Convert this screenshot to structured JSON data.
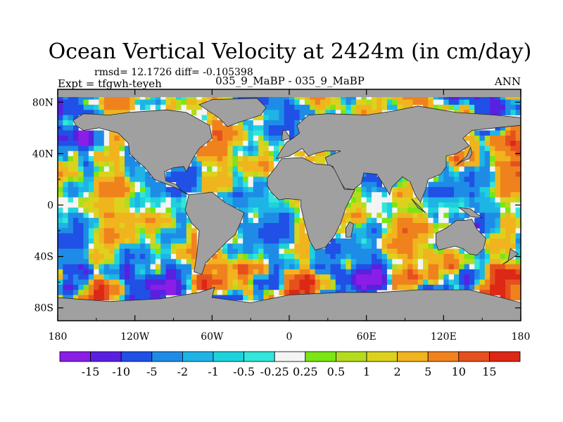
{
  "chart_data": {
    "type": "heatmap",
    "projection": "cylindrical-equidistant",
    "title": "Ocean Vertical Velocity at 2424m (in cm/day)",
    "stats_label": "rmsd= 12.1726  diff= -0.105398",
    "left_label": "Expt = tfgwh-teyeh",
    "center_label": "035_9_MaBP - 035_9_MaBP",
    "right_label": "ANN",
    "xlim": [
      -180,
      180
    ],
    "ylim": [
      -90,
      90
    ],
    "x_ticks": [
      -180,
      -120,
      -60,
      0,
      60,
      120,
      180
    ],
    "x_tick_labels": [
      "180",
      "120W",
      "60W",
      "0",
      "60E",
      "120E",
      "180"
    ],
    "y_ticks": [
      80,
      40,
      0,
      -40,
      -80
    ],
    "y_tick_labels": [
      "80N",
      "40N",
      "0",
      "40S",
      "80S"
    ],
    "land_color": "#a0a0a0",
    "colorbar": {
      "orientation": "horizontal",
      "levels": [
        "-15",
        "-10",
        "-5",
        "-2",
        "-1",
        "-0.5",
        "-0.25",
        "0.25",
        "0.5",
        "1",
        "2",
        "5",
        "10",
        "15"
      ],
      "colors": [
        "#8a1ee6",
        "#5a20e0",
        "#2050e6",
        "#1e8ce6",
        "#1eb4e6",
        "#1ed2dc",
        "#32e6dc",
        "#f4f4f4",
        "#7ae614",
        "#b4dc1e",
        "#dcd21e",
        "#f0b41e",
        "#f0821e",
        "#e6501e",
        "#dc2814"
      ]
    }
  }
}
